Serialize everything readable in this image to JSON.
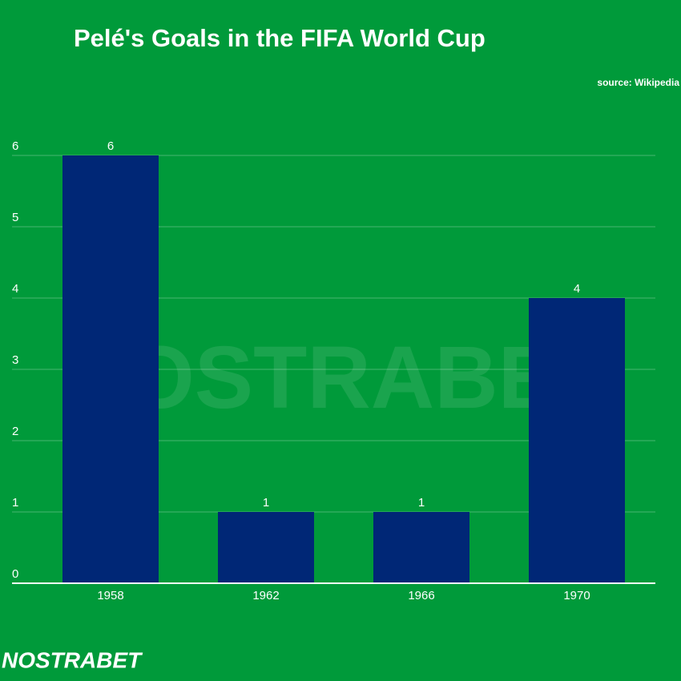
{
  "chart_data": {
    "type": "bar",
    "title": "Pelé's Goals in the FIFA World Cup",
    "source": "source: Wikipedia",
    "categories": [
      "1958",
      "1962",
      "1966",
      "1970"
    ],
    "values": [
      6,
      1,
      1,
      4
    ],
    "color": "#002776",
    "ylim": [
      0,
      6
    ],
    "yticks": [
      0,
      1,
      2,
      3,
      4,
      5,
      6
    ],
    "grid": true,
    "data_labels": true,
    "watermark": "NOSTRABET",
    "logo": "NOSTRABET"
  }
}
